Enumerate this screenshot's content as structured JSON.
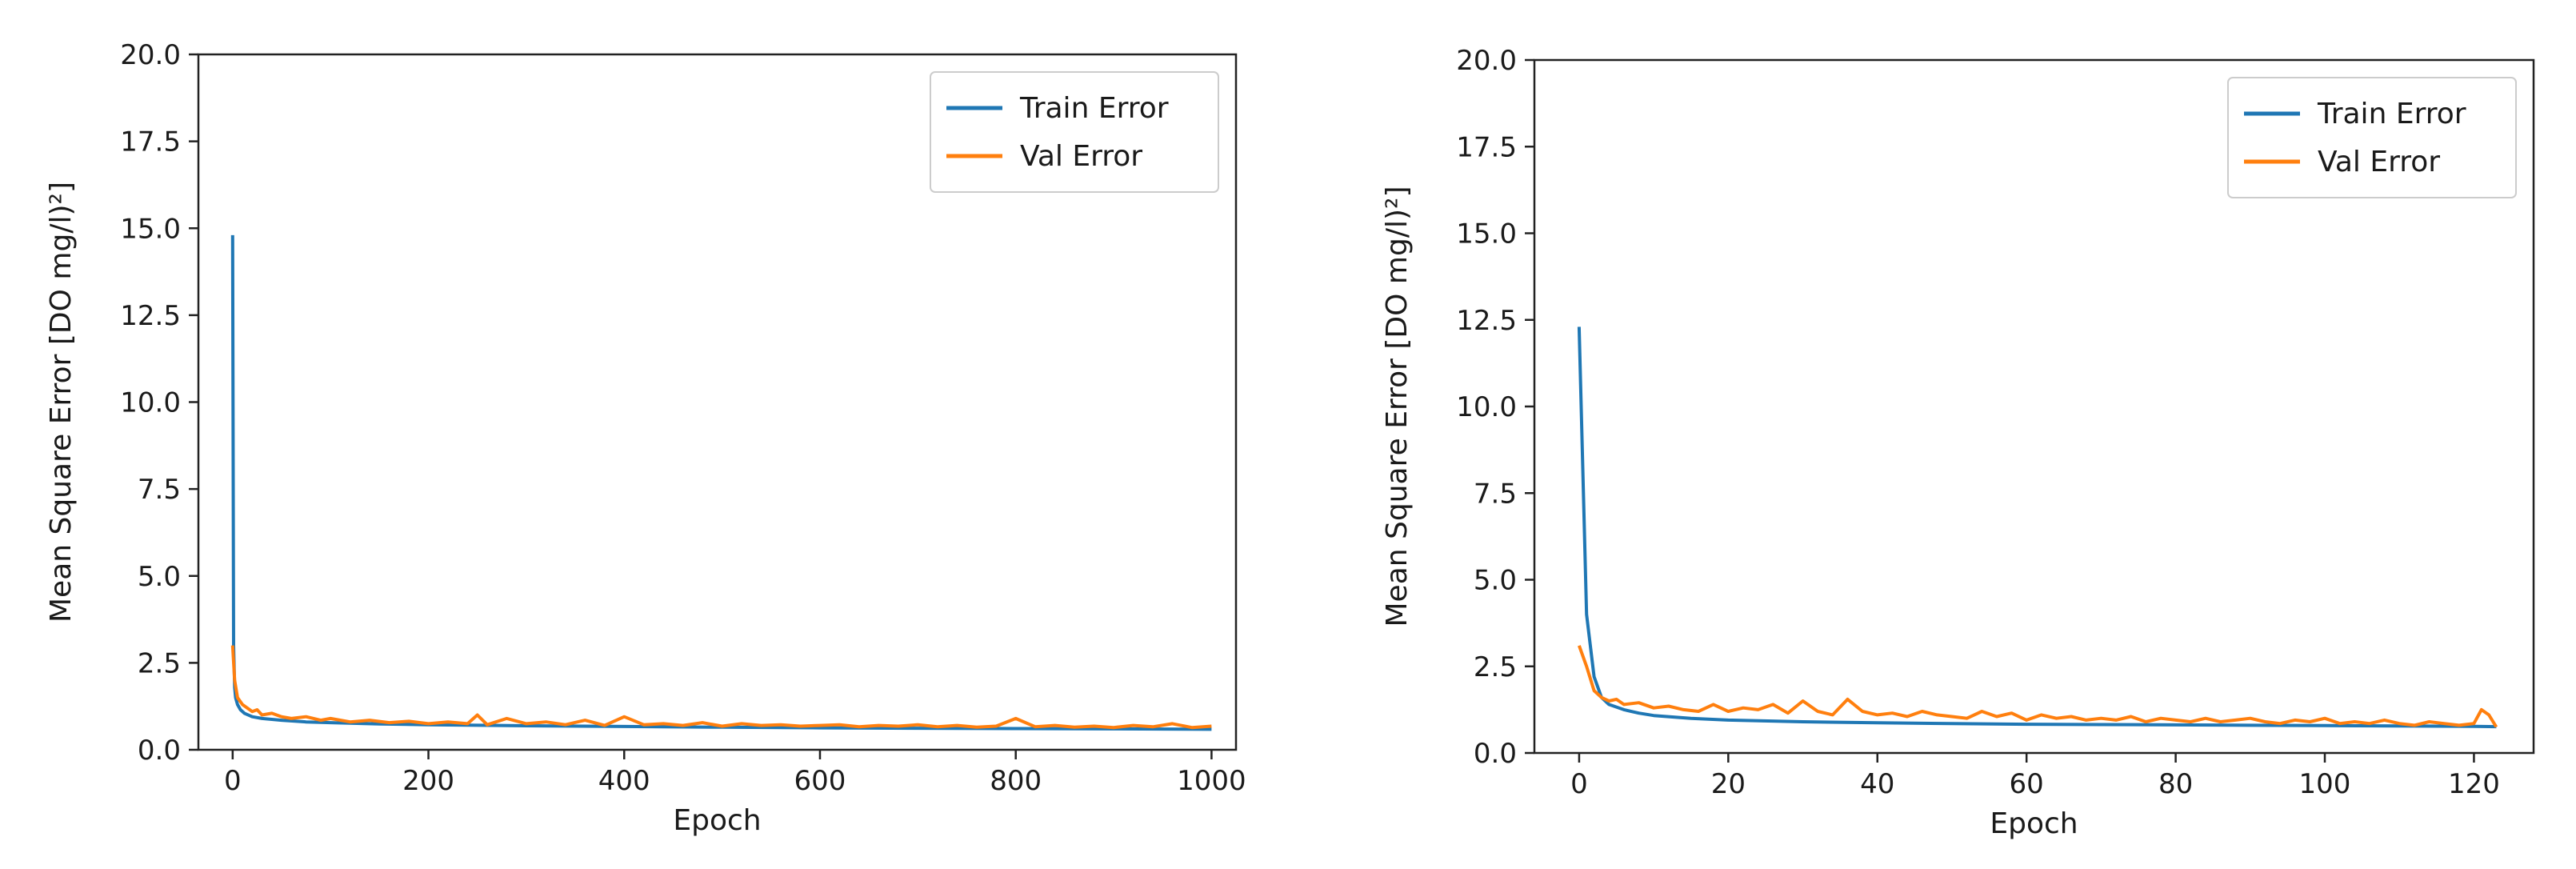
{
  "figure": {
    "colors": {
      "train": "#1f77b4",
      "val": "#ff7f0e",
      "axis": "#222222",
      "legend_border": "#cccccc"
    }
  },
  "chart_data": [
    {
      "type": "line",
      "title": "",
      "xlabel": "Epoch",
      "ylabel": "Mean Square Error [DO   mg/l)²]",
      "xlim": [
        -35,
        1025
      ],
      "ylim": [
        0,
        20
      ],
      "xticks": [
        0,
        200,
        400,
        600,
        800,
        1000
      ],
      "yticks": [
        0.0,
        2.5,
        5.0,
        7.5,
        10.0,
        12.5,
        15.0,
        17.5,
        20.0
      ],
      "xtick_labels": [
        "0",
        "200",
        "400",
        "600",
        "800",
        "1000"
      ],
      "ytick_labels": [
        "0.0",
        "2.5",
        "5.0",
        "7.5",
        "10.0",
        "12.5",
        "15.0",
        "17.5",
        "20.0"
      ],
      "grid": false,
      "legend": "top-right",
      "series": [
        {
          "name": "Train Error",
          "color": "#1f77b4",
          "x": [
            0,
            1,
            2,
            3,
            5,
            8,
            12,
            20,
            30,
            50,
            75,
            100,
            150,
            200,
            300,
            400,
            500,
            600,
            700,
            800,
            900,
            1000
          ],
          "y": [
            14.8,
            3.0,
            1.8,
            1.5,
            1.3,
            1.15,
            1.05,
            0.95,
            0.9,
            0.85,
            0.8,
            0.78,
            0.74,
            0.72,
            0.69,
            0.67,
            0.65,
            0.63,
            0.62,
            0.61,
            0.6,
            0.59
          ]
        },
        {
          "name": "Val Error",
          "color": "#ff7f0e",
          "x": [
            0,
            2,
            5,
            10,
            15,
            20,
            25,
            30,
            40,
            50,
            60,
            75,
            90,
            100,
            120,
            140,
            160,
            180,
            200,
            220,
            240,
            250,
            260,
            280,
            300,
            320,
            340,
            360,
            380,
            400,
            420,
            440,
            460,
            480,
            500,
            520,
            540,
            560,
            580,
            600,
            620,
            640,
            660,
            680,
            700,
            720,
            740,
            760,
            780,
            800,
            820,
            840,
            860,
            880,
            900,
            920,
            940,
            960,
            980,
            1000
          ],
          "y": [
            3.0,
            2.0,
            1.5,
            1.3,
            1.2,
            1.1,
            1.15,
            1.0,
            1.05,
            0.95,
            0.9,
            0.95,
            0.85,
            0.9,
            0.8,
            0.85,
            0.78,
            0.82,
            0.75,
            0.8,
            0.75,
            1.0,
            0.72,
            0.9,
            0.75,
            0.8,
            0.72,
            0.85,
            0.7,
            0.95,
            0.72,
            0.75,
            0.7,
            0.78,
            0.68,
            0.75,
            0.7,
            0.72,
            0.68,
            0.7,
            0.72,
            0.66,
            0.7,
            0.68,
            0.72,
            0.66,
            0.7,
            0.65,
            0.68,
            0.9,
            0.66,
            0.7,
            0.65,
            0.68,
            0.64,
            0.7,
            0.66,
            0.75,
            0.64,
            0.68
          ]
        }
      ]
    },
    {
      "type": "line",
      "title": "",
      "xlabel": "Epoch",
      "ylabel": "Mean Square Error [DO   mg/l)²]",
      "xlim": [
        -6,
        128
      ],
      "ylim": [
        0,
        20
      ],
      "xticks": [
        0,
        20,
        40,
        60,
        80,
        100,
        120
      ],
      "yticks": [
        0.0,
        2.5,
        5.0,
        7.5,
        10.0,
        12.5,
        15.0,
        17.5,
        20.0
      ],
      "xtick_labels": [
        "0",
        "20",
        "40",
        "60",
        "80",
        "100",
        "120"
      ],
      "ytick_labels": [
        "0.0",
        "2.5",
        "5.0",
        "7.5",
        "10.0",
        "12.5",
        "15.0",
        "17.5",
        "20.0"
      ],
      "grid": false,
      "legend": "top-right",
      "series": [
        {
          "name": "Train Error",
          "color": "#1f77b4",
          "x": [
            0,
            1,
            2,
            3,
            4,
            6,
            8,
            10,
            15,
            20,
            30,
            40,
            50,
            60,
            70,
            80,
            90,
            100,
            110,
            120,
            123
          ],
          "y": [
            12.3,
            4.0,
            2.2,
            1.6,
            1.4,
            1.25,
            1.15,
            1.08,
            1.0,
            0.95,
            0.9,
            0.87,
            0.85,
            0.83,
            0.82,
            0.81,
            0.8,
            0.79,
            0.78,
            0.77,
            0.76
          ]
        },
        {
          "name": "Val Error",
          "color": "#ff7f0e",
          "x": [
            0,
            1,
            2,
            3,
            4,
            5,
            6,
            8,
            10,
            12,
            14,
            16,
            18,
            20,
            22,
            24,
            26,
            28,
            30,
            32,
            34,
            36,
            38,
            40,
            42,
            44,
            46,
            48,
            50,
            52,
            54,
            56,
            58,
            60,
            62,
            64,
            66,
            68,
            70,
            72,
            74,
            76,
            78,
            80,
            82,
            84,
            86,
            88,
            90,
            92,
            94,
            96,
            98,
            100,
            102,
            104,
            106,
            108,
            110,
            112,
            114,
            116,
            118,
            120,
            121,
            122,
            123
          ],
          "y": [
            3.1,
            2.5,
            1.8,
            1.6,
            1.5,
            1.55,
            1.4,
            1.45,
            1.3,
            1.35,
            1.25,
            1.2,
            1.4,
            1.2,
            1.3,
            1.25,
            1.4,
            1.15,
            1.5,
            1.2,
            1.1,
            1.55,
            1.2,
            1.1,
            1.15,
            1.05,
            1.2,
            1.1,
            1.05,
            1.0,
            1.2,
            1.05,
            1.15,
            0.95,
            1.1,
            1.0,
            1.05,
            0.95,
            1.0,
            0.95,
            1.05,
            0.9,
            1.0,
            0.95,
            0.9,
            1.0,
            0.9,
            0.95,
            1.0,
            0.9,
            0.85,
            0.95,
            0.9,
            1.0,
            0.85,
            0.9,
            0.85,
            0.95,
            0.85,
            0.8,
            0.9,
            0.85,
            0.8,
            0.85,
            1.25,
            1.1,
            0.75
          ]
        }
      ]
    }
  ]
}
